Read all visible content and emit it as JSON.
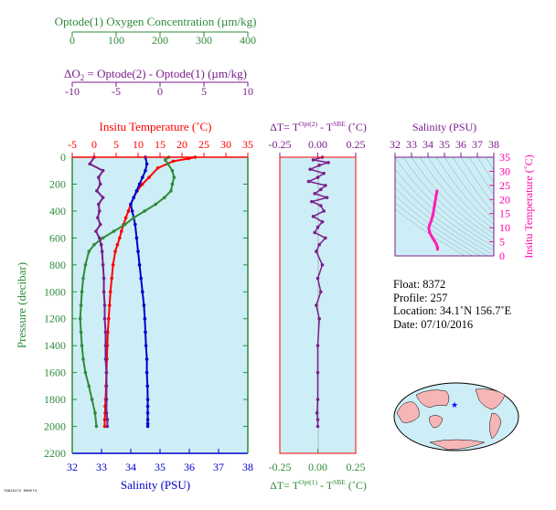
{
  "colors": {
    "oxygen": "#2e8b3a",
    "delta_o2": "#7a1e8c",
    "temperature": "#ff0000",
    "salinity": "#0000cc",
    "panel_bg": "#cdeef6",
    "axis": "#000000",
    "delta_t": "#7a1e8c",
    "ts_line": "#ff1fb4"
  },
  "axes_text": {
    "oxygen_title": "Optode(1) Oxygen Concentration (µm/kg)",
    "oxygen_ticks": [
      "0",
      "100",
      "200",
      "300",
      "400"
    ],
    "delta_o2_title_parts": [
      "ΔO",
      "2",
      " = Optode(2) - Optode(1)     (µm/kg)"
    ],
    "delta_o2_ticks": [
      "-10",
      "-5",
      "0",
      "5",
      "10"
    ],
    "temperature_title": "Insitu Temperature (˚C)",
    "temperature_ticks": [
      "-5",
      "0",
      "5",
      "10",
      "15",
      "20",
      "25",
      "30",
      "35"
    ],
    "salinity_title": "Salinity (PSU)",
    "salinity_ticks": [
      "32",
      "33",
      "34",
      "35",
      "36",
      "37",
      "38"
    ],
    "pressure_title": "Pressure (decibar)",
    "pressure_ticks": [
      "0",
      "200",
      "400",
      "600",
      "800",
      "1000",
      "1200",
      "1400",
      "1600",
      "1800",
      "2000",
      "2200"
    ],
    "dt_top_title_parts": [
      "ΔT= T",
      "Opt(2)",
      " - T",
      "SBE",
      " (˚C)"
    ],
    "dt_bottom_title_parts": [
      "ΔT= T",
      "Opt(1)",
      " - T",
      "SBE",
      " (˚C)"
    ],
    "dt_ticks": [
      "-0.25",
      "0.00",
      "0.25"
    ],
    "ts_sal_title": "Salinity (PSU)",
    "ts_sal_ticks": [
      "32",
      "33",
      "34",
      "35",
      "36",
      "37",
      "38"
    ],
    "ts_temp_title": "Insitu Temperature (˚C)",
    "ts_temp_ticks": [
      "0",
      "5",
      "10",
      "15",
      "20",
      "25",
      "30",
      "35"
    ]
  },
  "info": {
    "float": "Float:  8372",
    "profile": "Profile:  257",
    "location": "Location:  34.1˚N  156.7˚E",
    "date": "Date:  07/10/2016"
  },
  "footer_code": "76823172 000574",
  "chart_data": [
    {
      "type": "line",
      "panel": "main-profile",
      "ylabel": "Pressure (decibar)",
      "ylim": [
        2200,
        0
      ],
      "grid": false,
      "series": [
        {
          "name": "Insitu Temperature (˚C)",
          "axis_range": [
            -5,
            35
          ],
          "x": [
            23.0,
            21.5,
            18.0,
            14.5,
            12.5,
            11.0,
            9.8,
            9.0,
            8.3,
            7.8,
            7.2,
            6.7,
            6.2,
            5.8,
            5.3,
            4.8,
            4.3,
            4.0,
            3.7,
            3.5,
            3.3,
            3.1,
            3.0,
            2.9,
            2.8,
            2.7,
            2.6,
            2.5,
            2.5,
            2.4,
            2.4
          ],
          "y": [
            0,
            10,
            30,
            80,
            150,
            200,
            250,
            300,
            350,
            400,
            450,
            500,
            550,
            600,
            650,
            700,
            800,
            900,
            1000,
            1100,
            1200,
            1300,
            1400,
            1500,
            1600,
            1700,
            1800,
            1850,
            1900,
            1950,
            2000
          ]
        },
        {
          "name": "Salinity (PSU)",
          "axis_range": [
            32,
            38
          ],
          "x": [
            34.5,
            34.55,
            34.5,
            34.4,
            34.3,
            34.2,
            34.1,
            34.0,
            34.05,
            34.1,
            34.15,
            34.2,
            34.25,
            34.3,
            34.35,
            34.4,
            34.45,
            34.48,
            34.5,
            34.52,
            34.55,
            34.55,
            34.57,
            34.58,
            34.58,
            34.58,
            34.58,
            34.58,
            34.58
          ],
          "y": [
            0,
            50,
            100,
            150,
            200,
            250,
            300,
            350,
            400,
            450,
            500,
            600,
            700,
            800,
            900,
            1000,
            1100,
            1200,
            1300,
            1400,
            1500,
            1600,
            1700,
            1800,
            1850,
            1900,
            1950,
            1980,
            2000
          ]
        },
        {
          "name": "Optode(1) Oxygen Concentration (µm/kg)",
          "axis_range": [
            0,
            400
          ],
          "x": [
            220,
            212,
            218,
            228,
            232,
            228,
            225,
            210,
            190,
            165,
            140,
            120,
            95,
            70,
            50,
            38,
            30,
            25,
            22,
            20,
            18,
            20,
            22,
            25,
            30,
            38,
            45,
            52,
            55
          ],
          "y": [
            0,
            20,
            50,
            100,
            150,
            200,
            250,
            300,
            350,
            400,
            450,
            500,
            550,
            600,
            650,
            700,
            800,
            900,
            1000,
            1100,
            1200,
            1300,
            1400,
            1500,
            1600,
            1700,
            1800,
            1900,
            2000
          ]
        },
        {
          "name": "ΔO2 = Optode(2) - Optode(1) (µm/kg)",
          "axis_range": [
            -10,
            10
          ],
          "x": [
            -7.5,
            -8.0,
            -6.5,
            -7.0,
            -6.8,
            -7.2,
            -6.5,
            -7.0,
            -6.9,
            -7.1,
            -6.8,
            -7.3,
            -6.9,
            -6.7,
            -6.6,
            -6.5,
            -6.4,
            -6.4,
            -6.3,
            -6.3,
            -6.2,
            -6.2,
            -6.2,
            -6.1,
            -6.1,
            -6.1,
            -6.1,
            -6.0,
            -6.0
          ],
          "y": [
            0,
            50,
            100,
            150,
            200,
            250,
            300,
            350,
            400,
            450,
            500,
            550,
            600,
            650,
            700,
            800,
            900,
            1000,
            1100,
            1200,
            1300,
            1400,
            1500,
            1600,
            1700,
            1800,
            1900,
            1950,
            2000
          ]
        }
      ]
    },
    {
      "type": "scatter",
      "panel": "delta-t",
      "xlim": [
        -0.25,
        0.25
      ],
      "ylim": [
        2200,
        0
      ],
      "grid": false,
      "x": [
        0.03,
        -0.03,
        0.07,
        0.01,
        -0.05,
        0.04,
        0.0,
        -0.06,
        0.05,
        0.02,
        -0.02,
        0.06,
        -0.04,
        0.02,
        0.04,
        -0.03,
        0.03,
        0.0,
        -0.02,
        0.05,
        0.01,
        -0.01,
        0.03,
        0.0,
        0.02,
        -0.01,
        0.01,
        0.0,
        0.0,
        0.0,
        -0.005,
        0.0,
        0.0
      ],
      "y": [
        0,
        20,
        40,
        60,
        90,
        120,
        150,
        180,
        210,
        240,
        270,
        300,
        330,
        360,
        400,
        440,
        480,
        520,
        560,
        600,
        650,
        700,
        800,
        900,
        1000,
        1100,
        1200,
        1400,
        1600,
        1800,
        1900,
        1950,
        2000
      ]
    },
    {
      "type": "line",
      "panel": "ts-diagram",
      "xlabel": "Salinity (PSU)",
      "ylabel": "Insitu Temperature (˚C)",
      "xlim": [
        32,
        38
      ],
      "ylim": [
        0,
        35
      ],
      "x": [
        34.55,
        34.5,
        34.4,
        34.3,
        34.2,
        34.1,
        34.05,
        34.1,
        34.2,
        34.3,
        34.4,
        34.5,
        34.55,
        34.58,
        34.58
      ],
      "y": [
        23.0,
        21.5,
        18.0,
        14.5,
        12.5,
        11.0,
        9.8,
        8.3,
        7.2,
        6.2,
        5.3,
        4.3,
        3.5,
        3.0,
        2.4
      ]
    }
  ]
}
